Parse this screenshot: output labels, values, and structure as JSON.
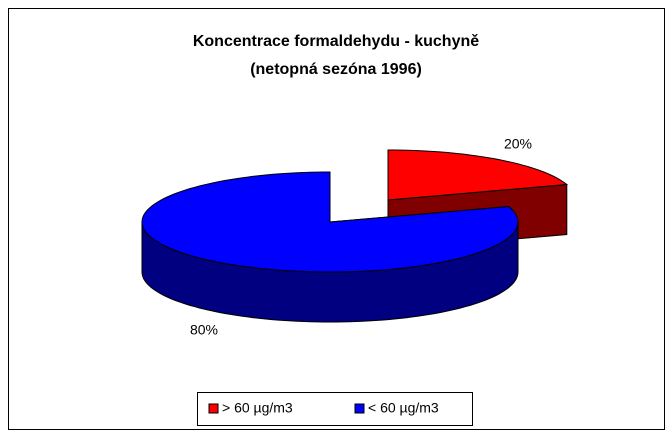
{
  "chart_data": {
    "type": "pie",
    "title": [
      "Koncentrace formaldehydu - kuchyně",
      "(netopná sezóna 1996)"
    ],
    "categories": [
      "> 60 µg/m3",
      "< 60 µg/m3"
    ],
    "values": [
      20,
      80
    ],
    "value_labels": [
      "20%",
      "80%"
    ],
    "colors": [
      "#ff0000",
      "#0000ff"
    ],
    "side_colors": [
      "#800000",
      "#000080"
    ],
    "legend": "bottom"
  }
}
